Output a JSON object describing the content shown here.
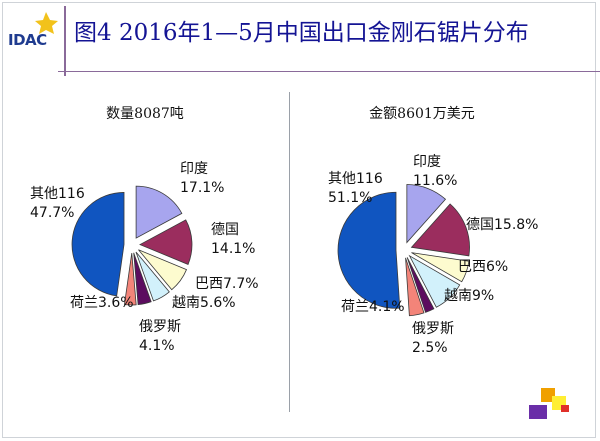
{
  "logo": {
    "text": "IDAC"
  },
  "title": "图4  2016年1—5月中国出口金刚石锯片分布",
  "chart_data": [
    {
      "type": "pie",
      "title": "数量8087吨",
      "slices": [
        {
          "name": "印度",
          "value": 17.1,
          "color": "#a7a5ee"
        },
        {
          "name": "德国",
          "value": 14.1,
          "color": "#9b2d5e"
        },
        {
          "name": "巴西",
          "value": 7.7,
          "color": "#fdfbcf"
        },
        {
          "name": "越南",
          "value": 5.6,
          "color": "#d2f1fb"
        },
        {
          "name": "俄罗斯",
          "value": 4.1,
          "color": "#5c0c5f"
        },
        {
          "name": "荷兰",
          "value": 3.6,
          "color": "#f38479"
        },
        {
          "name": "其他116",
          "value": 47.7,
          "color": "#1055c0"
        }
      ],
      "labels": [
        {
          "line1": "印度",
          "line2": "17.1%"
        },
        {
          "line1": "德国",
          "line2": "14.1%"
        },
        {
          "line1": "巴西7.7%",
          "line2": ""
        },
        {
          "line1": "越南5.6%",
          "line2": ""
        },
        {
          "line1": "俄罗斯",
          "line2": "4.1%"
        },
        {
          "line1": "荷兰3.6%",
          "line2": ""
        },
        {
          "line1": "其他116",
          "line2": "47.7%"
        }
      ]
    },
    {
      "type": "pie",
      "title": "金额8601万美元",
      "slices": [
        {
          "name": "印度",
          "value": 11.6,
          "color": "#a7a5ee"
        },
        {
          "name": "德国",
          "value": 15.8,
          "color": "#9b2d5e"
        },
        {
          "name": "巴西",
          "value": 6,
          "color": "#fdfbcf"
        },
        {
          "name": "越南",
          "value": 9,
          "color": "#d2f1fb"
        },
        {
          "name": "俄罗斯",
          "value": 2.5,
          "color": "#5c0c5f"
        },
        {
          "name": "荷兰",
          "value": 4.1,
          "color": "#f38479"
        },
        {
          "name": "其他116",
          "value": 51.1,
          "color": "#1055c0"
        }
      ],
      "labels": [
        {
          "line1": "印度",
          "line2": "11.6%"
        },
        {
          "line1": "德国15.8%",
          "line2": ""
        },
        {
          "line1": "巴西6%",
          "line2": ""
        },
        {
          "line1": "越南9%",
          "line2": ""
        },
        {
          "line1": "俄罗斯",
          "line2": "2.5%"
        },
        {
          "line1": "荷兰4.1%",
          "line2": ""
        },
        {
          "line1": "其他116",
          "line2": "51.1%"
        }
      ]
    }
  ]
}
